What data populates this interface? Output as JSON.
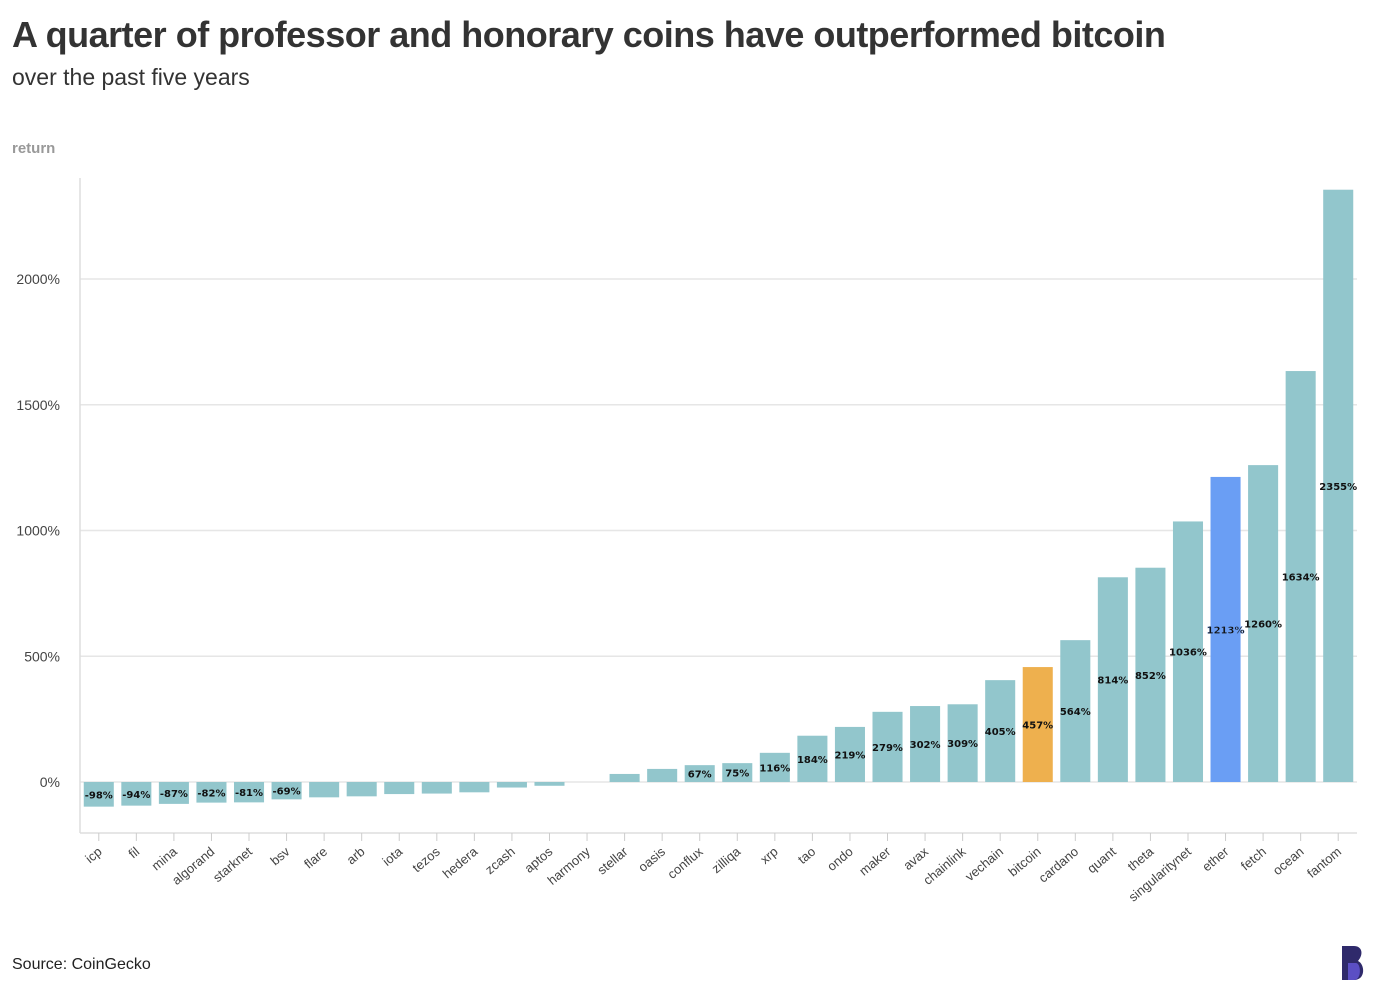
{
  "header": {
    "title": "A quarter of professor and honorary coins have outperformed bitcoin",
    "subtitle": "over the past five years"
  },
  "footer": {
    "source": "Source: CoinGecko"
  },
  "colors": {
    "default_bar": "#92c6cc",
    "bitcoin_bar": "#eeb04e",
    "ether_bar": "#6a9ef4",
    "grid": "#e6e6e6",
    "logo": "#2f2a6b"
  },
  "icons": {
    "logo": "brand-b-logo-icon"
  },
  "chart_data": {
    "type": "bar",
    "ylabel": "return",
    "xlabel": "",
    "ylim": [
      -200,
      2400
    ],
    "yticks": [
      0,
      500,
      1000,
      1500,
      2000
    ],
    "ytick_labels": [
      "0%",
      "500%",
      "1000%",
      "1500%",
      "2000%"
    ],
    "grid": true,
    "categories": [
      "icp",
      "fil",
      "mina",
      "algorand",
      "starknet",
      "bsv",
      "flare",
      "arb",
      "iota",
      "tezos",
      "hedera",
      "zcash",
      "aptos",
      "harmony",
      "stellar",
      "oasis",
      "conflux",
      "zilliqa",
      "xrp",
      "tao",
      "ondo",
      "maker",
      "avax",
      "chainlink",
      "vechain",
      "bitcoin",
      "cardano",
      "quant",
      "theta",
      "singularitynet",
      "ether",
      "fetch",
      "ocean",
      "fantom"
    ],
    "values": [
      -98,
      -94,
      -87,
      -82,
      -81,
      -69,
      -61,
      -57,
      -48,
      -46,
      -41,
      -22,
      -15,
      0,
      32,
      52,
      67,
      75,
      116,
      184,
      219,
      279,
      302,
      309,
      405,
      457,
      564,
      814,
      852,
      1036,
      1213,
      1260,
      1634,
      2355
    ],
    "data_labels": [
      "-98%",
      "-94%",
      "-87%",
      "-82%",
      "-81%",
      "-69%",
      "",
      "",
      "",
      "",
      "",
      "",
      "",
      "",
      "",
      "",
      "67%",
      "75%",
      "116%",
      "184%",
      "219%",
      "279%",
      "302%",
      "309%",
      "405%",
      "457%",
      "564%",
      "814%",
      "852%",
      "1036%",
      "1213%",
      "1260%",
      "1634%",
      "2355%"
    ],
    "highlights": {
      "bitcoin": "bitcoin_bar",
      "ether": "ether_bar"
    }
  }
}
